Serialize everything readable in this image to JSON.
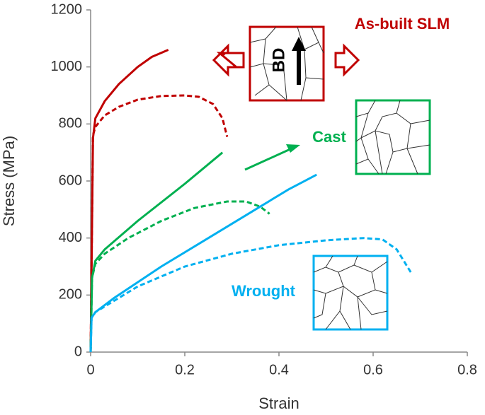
{
  "chart_data": {
    "type": "line",
    "xlabel": "Strain",
    "ylabel": "Stress (MPa)",
    "xlim": [
      0,
      0.8
    ],
    "xticks": [
      0,
      0.2,
      0.4,
      0.6,
      0.8
    ],
    "ylim": [
      0,
      1200
    ],
    "yticks": [
      0,
      200,
      400,
      600,
      800,
      1000,
      1200
    ],
    "grid": false,
    "series": [
      {
        "color": "#c00000",
        "dashed": false,
        "x": [
          0,
          0.005,
          0.01,
          0.03,
          0.06,
          0.1,
          0.13,
          0.165
        ],
        "values": [
          0,
          750,
          820,
          880,
          940,
          1000,
          1035,
          1060
        ]
      },
      {
        "color": "#c00000",
        "dashed": true,
        "x": [
          0,
          0.005,
          0.01,
          0.03,
          0.06,
          0.1,
          0.15,
          0.2,
          0.23,
          0.26,
          0.28,
          0.29
        ],
        "values": [
          0,
          760,
          790,
          830,
          860,
          885,
          898,
          900,
          895,
          870,
          820,
          755
        ]
      },
      {
        "color": "#00b050",
        "dashed": false,
        "x": [
          0,
          0.003,
          0.01,
          0.03,
          0.1,
          0.2,
          0.28
        ],
        "values": [
          0,
          260,
          320,
          360,
          460,
          590,
          700
        ]
      },
      {
        "color": "#00b050",
        "dashed": true,
        "x": [
          0,
          0.003,
          0.01,
          0.03,
          0.08,
          0.15,
          0.22,
          0.29,
          0.33,
          0.36,
          0.38
        ],
        "values": [
          0,
          260,
          310,
          345,
          400,
          460,
          505,
          528,
          528,
          510,
          485
        ]
      },
      {
        "color": "#00b0f0",
        "dashed": false,
        "x": [
          0,
          0.002,
          0.01,
          0.05,
          0.15,
          0.25,
          0.35,
          0.42,
          0.48
        ],
        "values": [
          0,
          120,
          140,
          190,
          300,
          400,
          500,
          570,
          622
        ]
      },
      {
        "color": "#00b0f0",
        "dashed": true,
        "x": [
          0,
          0.002,
          0.01,
          0.05,
          0.1,
          0.2,
          0.3,
          0.4,
          0.5,
          0.58,
          0.62,
          0.65,
          0.68
        ],
        "values": [
          0,
          120,
          140,
          180,
          230,
          300,
          345,
          375,
          392,
          400,
          395,
          360,
          280
        ]
      }
    ],
    "annotations": [
      {
        "text": "As-built SLM",
        "color": "#c00000"
      },
      {
        "text": "Cast",
        "color": "#00b050"
      },
      {
        "text": "Wrought",
        "color": "#00b0f0"
      },
      {
        "text": "BD",
        "color": "#000000"
      }
    ]
  }
}
